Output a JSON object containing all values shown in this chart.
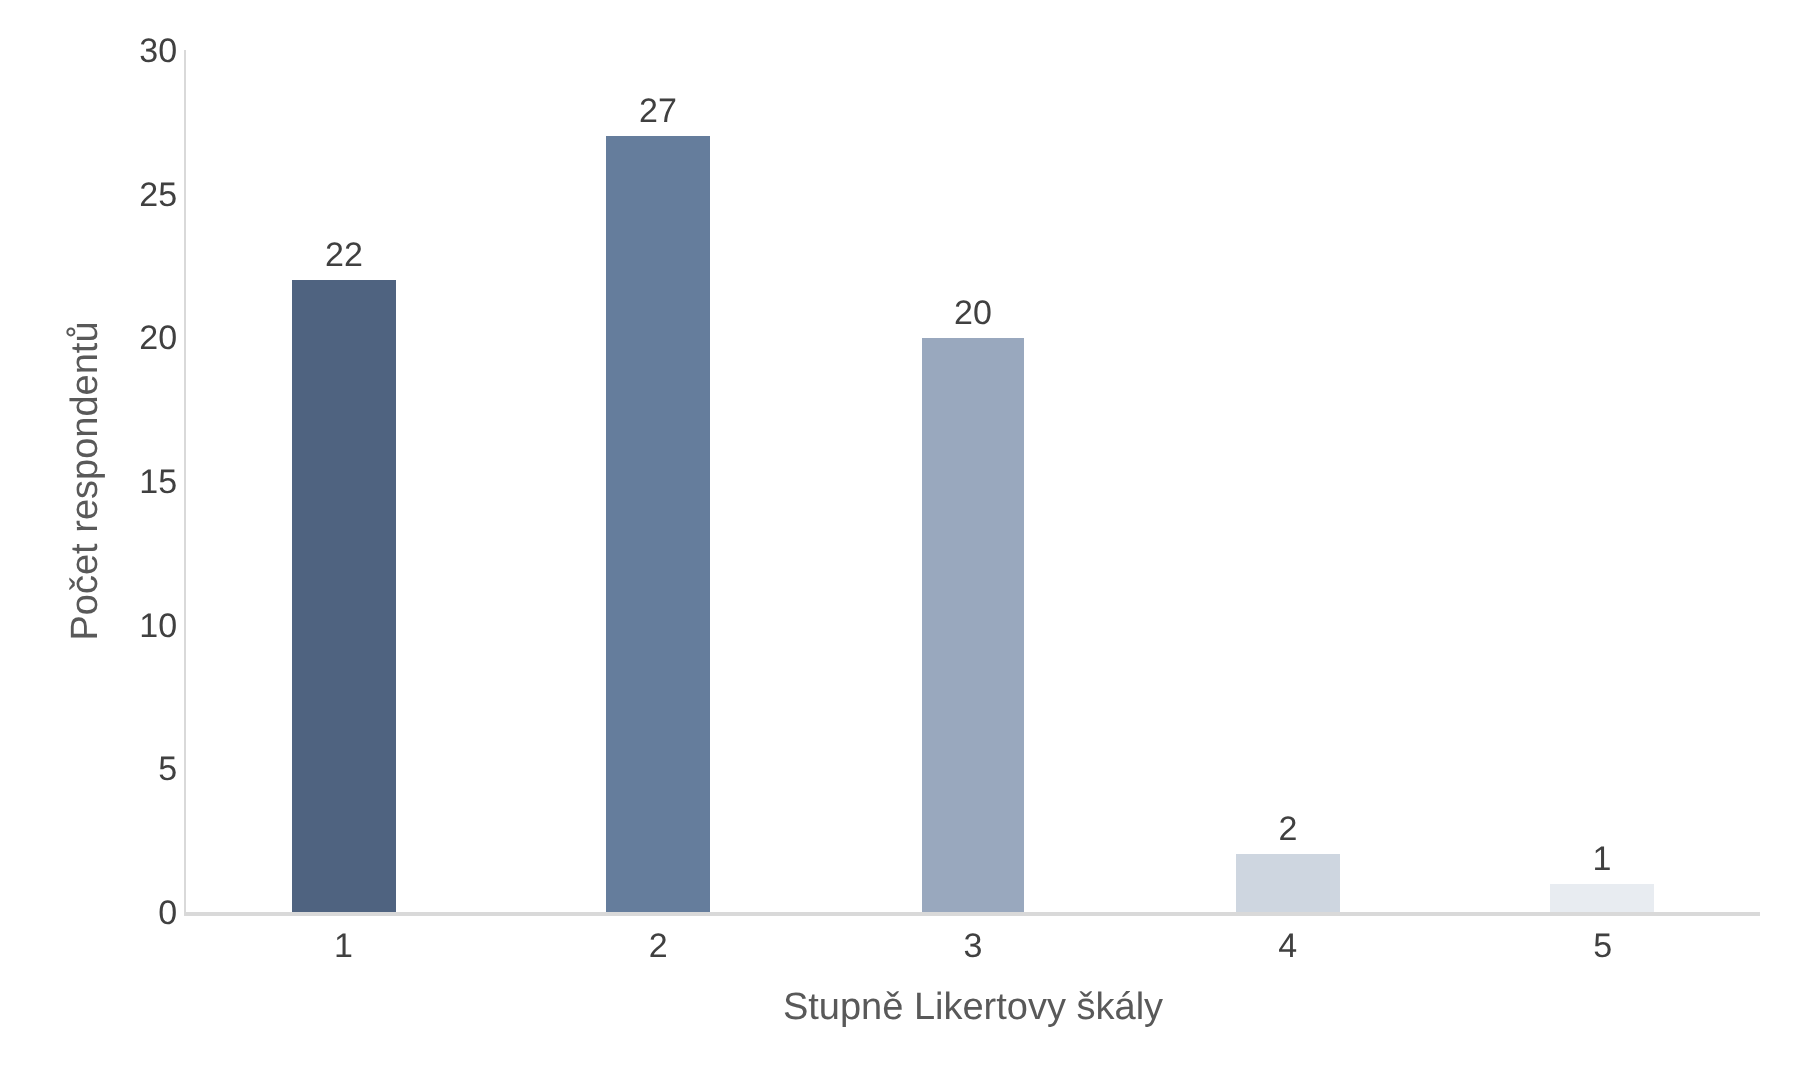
{
  "chart_data": {
    "type": "bar",
    "xlabel": "Stupně Likertovy škály",
    "ylabel": "Počet respondentů",
    "categories": [
      "1",
      "2",
      "3",
      "4",
      "5"
    ],
    "values": [
      22,
      27,
      20,
      2,
      1
    ],
    "colors": [
      "#4f6380",
      "#657d9c",
      "#99a8be",
      "#ced6e0",
      "#e8ecf1"
    ],
    "data_labels": true,
    "ylim": [
      0,
      30
    ],
    "yticks": [
      0,
      5,
      10,
      15,
      20,
      25,
      30
    ],
    "grid": false,
    "legend": false
  }
}
